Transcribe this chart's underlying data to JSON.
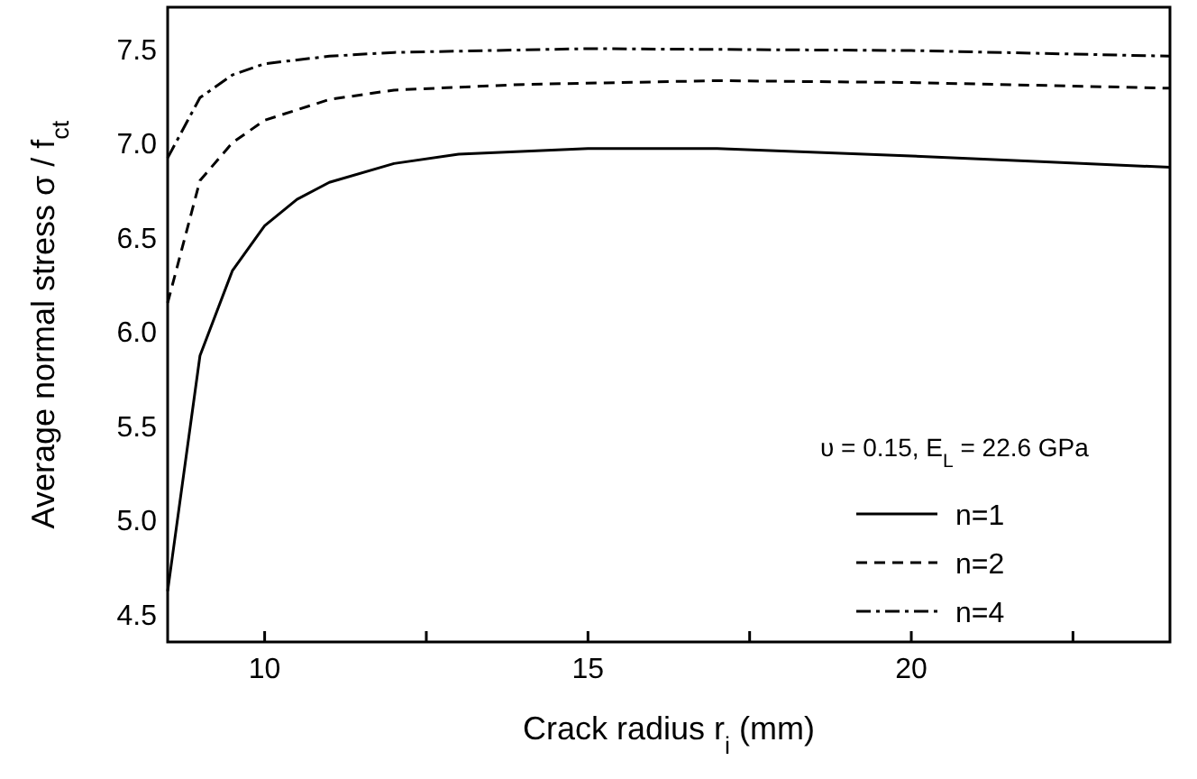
{
  "chart_data": {
    "type": "line",
    "xlabel": "Crack radius r$_{i}$ (mm)",
    "ylabel": "Average normal stress  σ / f$_{ct}$",
    "xlim": [
      8.5,
      24
    ],
    "xticks": [
      10,
      {
        "value": 12.5,
        "label": null
      },
      15,
      {
        "value": 17.5,
        "label": null
      },
      20,
      {
        "value": 22.5,
        "label": null
      }
    ],
    "ylim": [
      4.35,
      7.72
    ],
    "yticks": [
      4.5,
      {
        "value": 5,
        "label": "5.0"
      },
      5.5,
      {
        "value": 6,
        "label": "6.0"
      },
      6.5,
      {
        "value": 7,
        "label": "7.0"
      },
      7.5
    ],
    "grid": false,
    "legend": "right",
    "annotations": [
      "υ = 0.15,   E$_{L}$ = 22.6 GPa"
    ],
    "series": [
      {
        "name": "n=1",
        "color": "#000000",
        "line_style": "solid",
        "x": [
          8.5,
          9.0,
          9.5,
          10,
          10.5,
          11,
          12,
          13,
          15,
          17,
          20,
          22,
          24
        ],
        "values": [
          4.62,
          5.87,
          6.32,
          6.56,
          6.7,
          6.79,
          6.89,
          6.94,
          6.97,
          6.97,
          6.93,
          6.9,
          6.87
        ]
      },
      {
        "name": "n=2",
        "color": "#000000",
        "line_style": "dashed",
        "x": [
          8.5,
          9.0,
          9.5,
          10,
          11,
          12,
          14,
          17,
          20,
          24
        ],
        "values": [
          6.15,
          6.8,
          7.0,
          7.12,
          7.23,
          7.28,
          7.31,
          7.33,
          7.32,
          7.29
        ]
      },
      {
        "name": "n=4",
        "color": "#000000",
        "line_style": "dashdot",
        "x": [
          8.5,
          9.0,
          9.5,
          10,
          11,
          12,
          15,
          20,
          24
        ],
        "values": [
          6.92,
          7.24,
          7.36,
          7.42,
          7.46,
          7.48,
          7.5,
          7.49,
          7.46
        ]
      }
    ]
  }
}
